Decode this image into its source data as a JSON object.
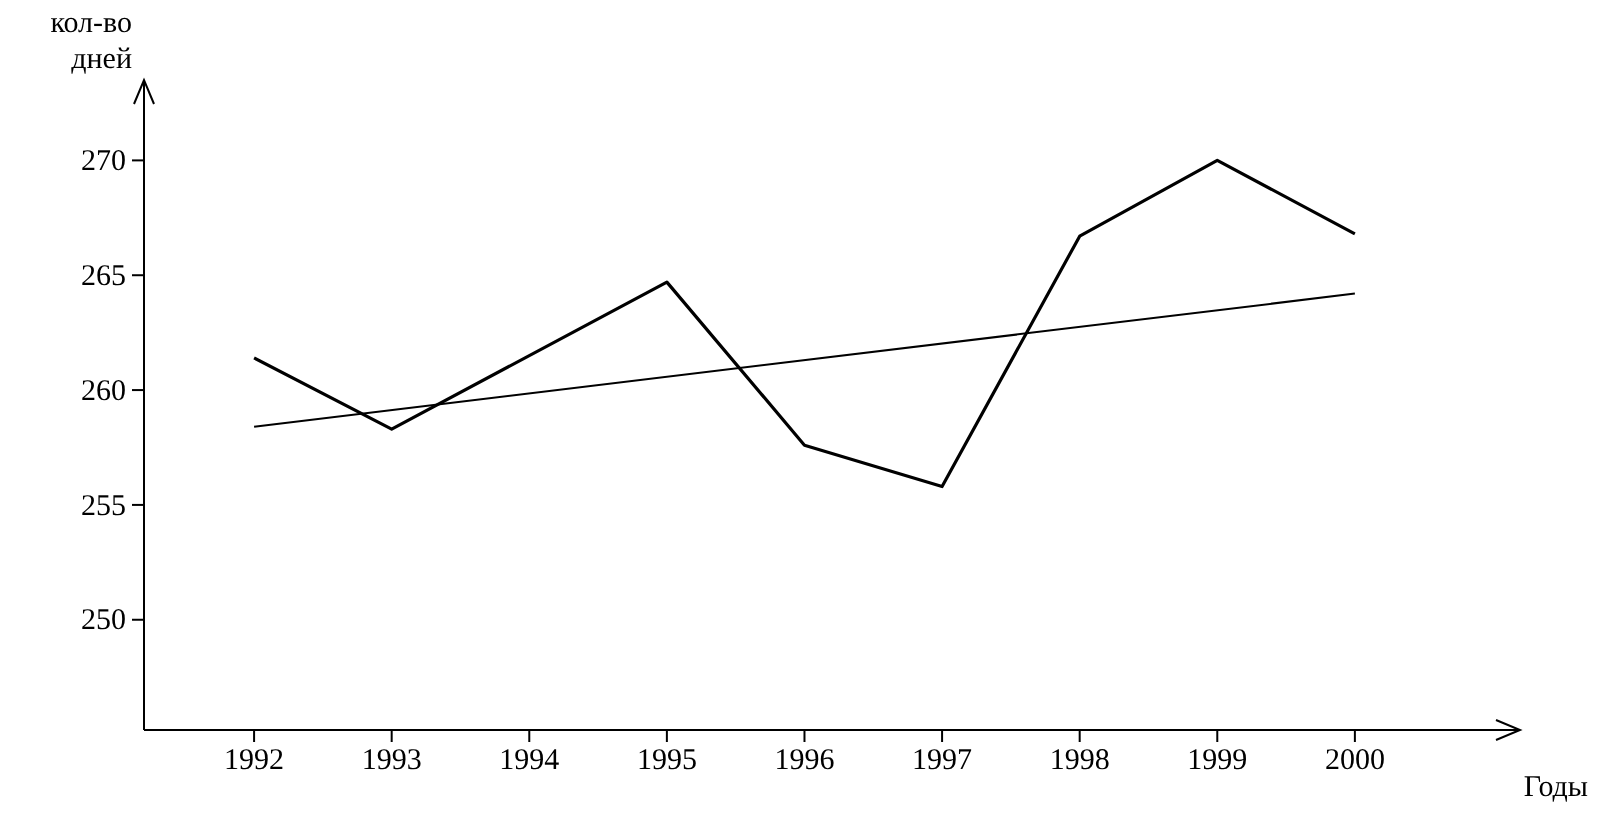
{
  "chart_data": {
    "type": "line",
    "ylabel": "кол-во дней",
    "xlabel": "Годы",
    "xlim": [
      1991.2,
      2001.2
    ],
    "ylim": [
      245.2,
      273.5
    ],
    "xticks": [
      1992,
      1993,
      1994,
      1995,
      1996,
      1997,
      1998,
      1999,
      2000
    ],
    "yticks": [
      250,
      255,
      260,
      265,
      270
    ],
    "series": [
      {
        "color": "#000000",
        "x": [
          1992,
          1993,
          1995,
          1996,
          1997,
          1998,
          1999,
          2000
        ],
        "values": [
          261.4,
          258.3,
          264.7,
          257.6,
          255.8,
          266.7,
          270,
          266.8
        ]
      },
      {
        "color": "#000000",
        "x": [
          1992,
          2000
        ],
        "values": [
          258.4,
          264.2
        ]
      }
    ],
    "grid": false,
    "marker": "none",
    "line_style": "solid"
  }
}
